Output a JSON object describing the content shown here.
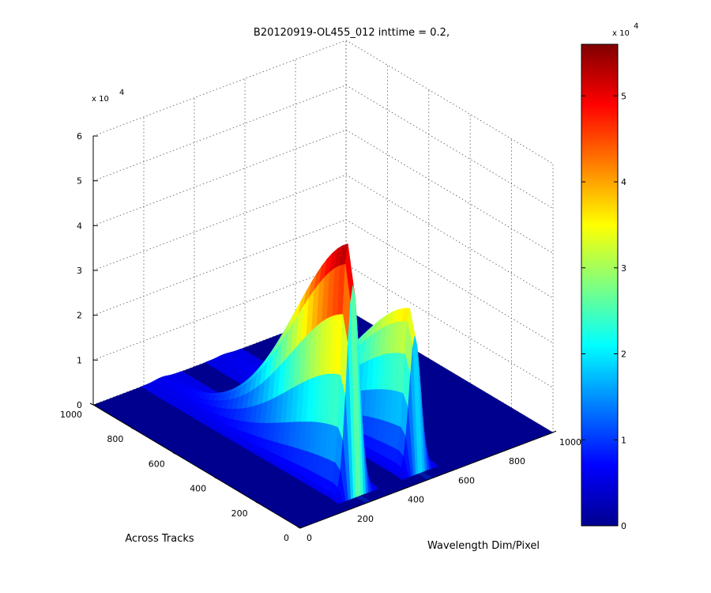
{
  "chart_data": {
    "type": "surface",
    "title": "B20120919-OL455_012 inttime = 0.2,",
    "xlabel": "Wavelength Dim/Pixel",
    "ylabel": "Across Tracks",
    "zlabel": "",
    "x_ticks": [
      "0",
      "200",
      "400",
      "600",
      "800",
      "1000"
    ],
    "y_ticks": [
      "0",
      "200",
      "400",
      "600",
      "800",
      "1000"
    ],
    "z_ticks": [
      "0",
      "1",
      "2",
      "3",
      "4",
      "5",
      "6"
    ],
    "z_exponent_label": "x 10",
    "z_exponent": "4",
    "xlim": [
      0,
      1000
    ],
    "ylim": [
      0,
      1000
    ],
    "zlim": [
      0,
      60000
    ],
    "colormap": "jet",
    "colorbar": {
      "ticks": [
        "0",
        "1",
        "2",
        "3",
        "4",
        "5"
      ],
      "exponent_label": "x 10",
      "exponent": "4",
      "range": [
        0,
        56000
      ]
    },
    "grid": true,
    "bands": [
      {
        "name": "",
        "x_center": 270,
        "x_width": 50,
        "y_range": [
          50,
          1000
        ],
        "y_peak": 40,
        "peak_value": 56000
      },
      {
        "name": "",
        "x_center": 515,
        "x_width": 45,
        "y_range": [
          50,
          1000
        ],
        "y_peak": 40,
        "peak_value": 36000
      }
    ]
  }
}
